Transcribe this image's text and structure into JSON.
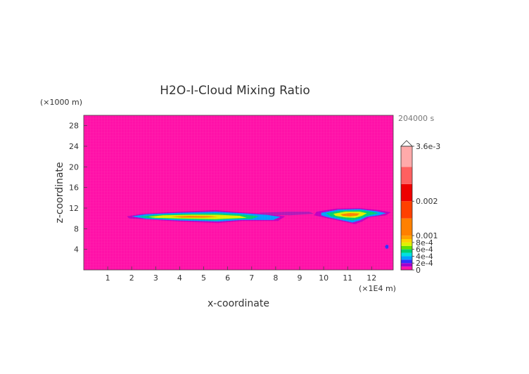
{
  "chart_data": {
    "type": "heatmap",
    "title": "H2O-I-Cloud Mixing Ratio",
    "time_label": "204000 s",
    "xlabel": "x-coordinate",
    "ylabel": "z-coordinate",
    "x_unit_label": "(×1E4 m)",
    "y_unit_label": "(×1000 m)",
    "xlim": [
      0,
      12.9
    ],
    "ylim": [
      0,
      30
    ],
    "x_ticks": [
      {
        "value": 1,
        "label": "1"
      },
      {
        "value": 2,
        "label": "2"
      },
      {
        "value": 3,
        "label": "3"
      },
      {
        "value": 4,
        "label": "4"
      },
      {
        "value": 5,
        "label": "5"
      },
      {
        "value": 6,
        "label": "6"
      },
      {
        "value": 7,
        "label": "7"
      },
      {
        "value": 8,
        "label": "8"
      },
      {
        "value": 9,
        "label": "9"
      },
      {
        "value": 10,
        "label": "10"
      },
      {
        "value": 11,
        "label": "11"
      },
      {
        "value": 12,
        "label": "12"
      }
    ],
    "y_ticks": [
      {
        "value": 4,
        "label": "4"
      },
      {
        "value": 8,
        "label": "8"
      },
      {
        "value": 12,
        "label": "12"
      },
      {
        "value": 16,
        "label": "16"
      },
      {
        "value": 20,
        "label": "20"
      },
      {
        "value": 24,
        "label": "24"
      },
      {
        "value": 28,
        "label": "28"
      }
    ],
    "background_color": "#ff11a8",
    "colorbar": {
      "vmin": 0,
      "vmax": 0.0036,
      "max_label": "3.6e-3",
      "labels": [
        {
          "value": 0.0036,
          "label": "3.6e-3"
        },
        {
          "value": 0.002,
          "label": "0.002"
        },
        {
          "value": 0.001,
          "label": "0.001"
        },
        {
          "value": 0.0008,
          "label": "8e-4"
        },
        {
          "value": 0.0006,
          "label": "6e-4"
        },
        {
          "value": 0.0004,
          "label": "4e-4"
        },
        {
          "value": 0.0002,
          "label": "2e-4"
        },
        {
          "value": 0,
          "label": "0"
        }
      ],
      "bands": [
        {
          "from": 0,
          "to": 0.0001,
          "color": "#ff11a8"
        },
        {
          "from": 0.0001,
          "to": 0.0002,
          "color": "#a000d0"
        },
        {
          "from": 0.0002,
          "to": 0.0003,
          "color": "#3030ff"
        },
        {
          "from": 0.0003,
          "to": 0.0004,
          "color": "#00a0ff"
        },
        {
          "from": 0.0004,
          "to": 0.0005,
          "color": "#00e0e0"
        },
        {
          "from": 0.0005,
          "to": 0.0006,
          "color": "#00d070"
        },
        {
          "from": 0.0006,
          "to": 0.0007,
          "color": "#60e000"
        },
        {
          "from": 0.0007,
          "to": 0.0008,
          "color": "#e0f000"
        },
        {
          "from": 0.0008,
          "to": 0.0009,
          "color": "#ffd000"
        },
        {
          "from": 0.0009,
          "to": 0.001,
          "color": "#ffa000"
        },
        {
          "from": 0.001,
          "to": 0.0015,
          "color": "#ff8000"
        },
        {
          "from": 0.0015,
          "to": 0.002,
          "color": "#ff4000"
        },
        {
          "from": 0.002,
          "to": 0.0025,
          "color": "#ee0000"
        },
        {
          "from": 0.0025,
          "to": 0.003,
          "color": "#ff6060"
        },
        {
          "from": 0.003,
          "to": 0.0036,
          "color": "#ffaaaa"
        }
      ]
    },
    "regions": [
      {
        "name": "cloud-left",
        "layers": [
          {
            "color": "#c000c0",
            "polygon": [
              [
                1.8,
                10.4
              ],
              [
                2.4,
                10.9
              ],
              [
                4,
                11.3
              ],
              [
                5.5,
                11.6
              ],
              [
                6.5,
                11.2
              ],
              [
                7.6,
                10.9
              ],
              [
                8.4,
                10.4
              ],
              [
                8.1,
                9.5
              ],
              [
                6.6,
                9.5
              ],
              [
                5.6,
                9.1
              ],
              [
                4,
                9.4
              ],
              [
                2.6,
                9.8
              ],
              [
                1.9,
                10.0
              ]
            ]
          },
          {
            "color": "#00a0ff",
            "polygon": [
              [
                2.0,
                10.4
              ],
              [
                2.6,
                10.8
              ],
              [
                4,
                11.1
              ],
              [
                5.5,
                11.3
              ],
              [
                6.6,
                11.0
              ],
              [
                7.6,
                10.7
              ],
              [
                8.2,
                10.3
              ],
              [
                7.9,
                9.7
              ],
              [
                6.6,
                9.7
              ],
              [
                5.6,
                9.4
              ],
              [
                4,
                9.6
              ],
              [
                2.6,
                9.9
              ]
            ]
          },
          {
            "color": "#00d070",
            "polygon": [
              [
                2.3,
                10.3
              ],
              [
                3,
                10.7
              ],
              [
                4,
                10.9
              ],
              [
                5.5,
                11.0
              ],
              [
                6.5,
                10.8
              ],
              [
                7.3,
                10.4
              ],
              [
                7.0,
                9.9
              ],
              [
                6.0,
                9.8
              ],
              [
                5.5,
                9.6
              ],
              [
                4,
                9.8
              ],
              [
                2.8,
                10.0
              ]
            ]
          },
          {
            "color": "#e0f000",
            "polygon": [
              [
                2.7,
                10.3
              ],
              [
                3.3,
                10.6
              ],
              [
                4.5,
                10.7
              ],
              [
                5.6,
                10.7
              ],
              [
                6.5,
                10.5
              ],
              [
                6.8,
                10.1
              ],
              [
                6.0,
                9.95
              ],
              [
                5.5,
                9.85
              ],
              [
                4,
                10.0
              ],
              [
                3.0,
                10.1
              ]
            ]
          },
          {
            "color": "#ff8000",
            "polygon": [
              [
                3.6,
                10.35
              ],
              [
                4.4,
                10.5
              ],
              [
                5.2,
                10.45
              ],
              [
                5.6,
                10.3
              ],
              [
                5.0,
                10.15
              ],
              [
                4.1,
                10.15
              ]
            ]
          }
        ]
      },
      {
        "name": "cloud-bridge",
        "layers": [
          {
            "color": "#b01ab8",
            "polygon": [
              [
                7.3,
                11.1
              ],
              [
                8.5,
                11.3
              ],
              [
                9.4,
                11.3
              ],
              [
                9.6,
                10.9
              ],
              [
                8.6,
                10.6
              ],
              [
                7.6,
                10.7
              ]
            ]
          }
        ]
      },
      {
        "name": "cloud-right",
        "layers": [
          {
            "color": "#c000c0",
            "polygon": [
              [
                9.7,
                11.3
              ],
              [
                10.5,
                11.9
              ],
              [
                11.5,
                12.0
              ],
              [
                12.3,
                11.6
              ],
              [
                12.8,
                11.2
              ],
              [
                12.6,
                10.6
              ],
              [
                11.9,
                10.2
              ],
              [
                11.6,
                9.4
              ],
              [
                11.3,
                8.9
              ],
              [
                10.8,
                9.4
              ],
              [
                10.2,
                10.0
              ],
              [
                9.6,
                10.6
              ]
            ]
          },
          {
            "color": "#00a0ff",
            "polygon": [
              [
                9.9,
                11.1
              ],
              [
                10.6,
                11.7
              ],
              [
                11.5,
                11.8
              ],
              [
                12.2,
                11.4
              ],
              [
                12.6,
                11.0
              ],
              [
                12.3,
                10.6
              ],
              [
                11.8,
                10.3
              ],
              [
                11.5,
                9.6
              ],
              [
                11.2,
                9.2
              ],
              [
                10.8,
                9.6
              ],
              [
                10.2,
                10.2
              ],
              [
                9.9,
                10.6
              ]
            ]
          },
          {
            "color": "#00d070",
            "polygon": [
              [
                10.1,
                11.0
              ],
              [
                10.7,
                11.5
              ],
              [
                11.5,
                11.6
              ],
              [
                12.0,
                11.3
              ],
              [
                12.3,
                11.0
              ],
              [
                11.9,
                10.6
              ],
              [
                11.5,
                10.0
              ],
              [
                11.2,
                9.6
              ],
              [
                10.8,
                9.9
              ],
              [
                10.3,
                10.4
              ]
            ]
          },
          {
            "color": "#e0f000",
            "polygon": [
              [
                10.4,
                10.9
              ],
              [
                10.9,
                11.3
              ],
              [
                11.5,
                11.3
              ],
              [
                11.8,
                11.0
              ],
              [
                11.6,
                10.5
              ],
              [
                11.3,
                10.1
              ],
              [
                10.9,
                10.2
              ],
              [
                10.5,
                10.5
              ]
            ]
          },
          {
            "color": "#ff8000",
            "polygon": [
              [
                10.7,
                10.8
              ],
              [
                11.1,
                11.05
              ],
              [
                11.5,
                10.95
              ],
              [
                11.4,
                10.55
              ],
              [
                11.1,
                10.4
              ],
              [
                10.8,
                10.5
              ]
            ]
          }
        ]
      },
      {
        "name": "small-blob",
        "layers": [
          {
            "color": "#3030ff",
            "polygon": [
              [
                12.6,
                4.9
              ],
              [
                12.7,
                4.8
              ],
              [
                12.7,
                4.2
              ],
              [
                12.6,
                4.1
              ],
              [
                12.55,
                4.5
              ]
            ]
          }
        ]
      }
    ]
  }
}
